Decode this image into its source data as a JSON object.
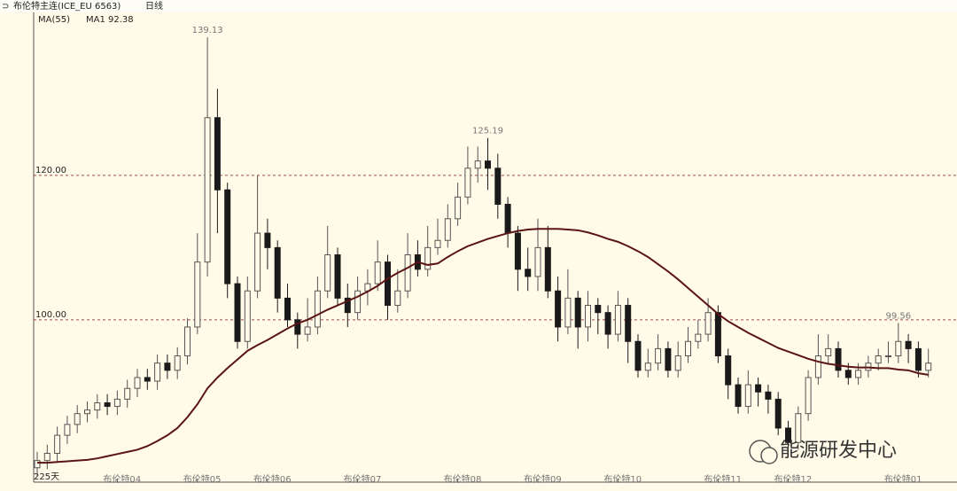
{
  "chart_data": {
    "type": "candlestick",
    "title": "布伦特主连(ICE_EU 6563)",
    "period": "日线",
    "indicator": "MA(55)",
    "ma_label": "MA1 92.38",
    "days_label": "225天",
    "watermark": "能源研发中心",
    "up_color": "#555555",
    "down_color": "#1a1a1a",
    "categories": [
      null,
      null,
      null,
      null,
      null,
      null,
      null,
      null,
      "布伦特04",
      null,
      null,
      null,
      null,
      null,
      null,
      null,
      "布伦特05",
      null,
      null,
      null,
      null,
      null,
      null,
      "布伦特06",
      null,
      null,
      null,
      null,
      null,
      null,
      null,
      null,
      "布伦特07",
      null,
      null,
      null,
      null,
      null,
      null,
      null,
      null,
      null,
      "布伦特08",
      null,
      null,
      null,
      null,
      null,
      null,
      null,
      "布伦特09",
      null,
      null,
      null,
      null,
      null,
      null,
      null,
      "布伦特10",
      null,
      null,
      null,
      null,
      null,
      null,
      null,
      null,
      null,
      "布伦特11",
      null,
      null,
      null,
      null,
      null,
      null,
      "布伦特12",
      null,
      null,
      null,
      null,
      null,
      null,
      null,
      null,
      null,
      null,
      "布伦特01",
      null,
      null,
      null
    ],
    "open": [
      79.5,
      80.5,
      81.5,
      84,
      85.5,
      87,
      87.5,
      88.5,
      88,
      89,
      90.5,
      92,
      91.5,
      94,
      93,
      95,
      99,
      108,
      128,
      118,
      105,
      97,
      104,
      112,
      110,
      103,
      100,
      98,
      99,
      104,
      109,
      103,
      101,
      104,
      105,
      108,
      102,
      104,
      109,
      107,
      110,
      111,
      114,
      117,
      121,
      122,
      121,
      116,
      112,
      107,
      106,
      110,
      104,
      99,
      103,
      99,
      102,
      101,
      98,
      102,
      97,
      93,
      94,
      96,
      93,
      95,
      97,
      98,
      101,
      95,
      91,
      88,
      91,
      90,
      89,
      85,
      83,
      87,
      92,
      95,
      96,
      93,
      92,
      93,
      94,
      95,
      95,
      97,
      96,
      93
    ],
    "high": [
      81.7,
      82.7,
      85.2,
      86.7,
      88.2,
      88.7,
      89.7,
      89.7,
      90.2,
      91.7,
      93.2,
      93.2,
      95.2,
      95.2,
      96.2,
      100.2,
      112,
      139.13,
      132,
      119,
      106,
      106,
      120,
      114,
      111,
      105,
      101,
      103,
      106,
      113,
      110,
      105,
      106,
      107,
      111,
      109,
      107,
      112,
      111,
      113,
      114,
      116,
      119,
      124,
      124,
      125.19,
      123,
      117,
      113,
      110,
      114,
      113,
      106,
      107,
      104,
      104,
      103,
      102,
      104,
      103,
      98,
      96,
      98,
      97,
      97,
      99,
      100,
      103,
      102,
      96,
      92,
      93,
      92,
      91,
      90,
      86,
      88,
      93,
      98,
      98,
      97,
      94,
      94,
      95,
      96,
      97,
      99.56,
      98,
      97,
      96
    ],
    "low": [
      78.3,
      79.3,
      80.3,
      82.8,
      84.3,
      85.8,
      86.3,
      86.8,
      86.8,
      87.8,
      89.3,
      90.3,
      90.3,
      91.8,
      91.8,
      93.8,
      98,
      106,
      112,
      103,
      96,
      96,
      103,
      107,
      101,
      99,
      96,
      97,
      98,
      103,
      102,
      99,
      100,
      102,
      104,
      100,
      101,
      103,
      106,
      106,
      109,
      110,
      113,
      116,
      119,
      118,
      114,
      110,
      104,
      104,
      104,
      103,
      97,
      98,
      96,
      97,
      98,
      96,
      97,
      94,
      92,
      92,
      93,
      92,
      92,
      94,
      96,
      97,
      94,
      89,
      87,
      87,
      88,
      87,
      84,
      82,
      82,
      86,
      91,
      94,
      92,
      91,
      91,
      92,
      93,
      94,
      94,
      94,
      92,
      92
    ],
    "close": [
      80.5,
      81.5,
      84,
      85.5,
      87,
      87.5,
      88.5,
      88,
      89,
      90.5,
      92,
      91.5,
      94,
      93,
      95,
      99,
      108,
      128,
      118,
      105,
      97,
      104,
      112,
      110,
      103,
      100,
      98,
      99,
      104,
      109,
      103,
      101,
      104,
      105,
      108,
      102,
      104,
      109,
      107,
      110,
      111,
      114,
      117,
      121,
      122,
      121,
      116,
      112,
      107,
      106,
      110,
      104,
      99,
      103,
      99,
      102,
      101,
      98,
      102,
      97,
      93,
      94,
      96,
      93,
      95,
      97,
      98,
      101,
      95,
      91,
      88,
      91,
      90,
      89,
      85,
      83,
      87,
      92,
      95,
      96,
      93,
      92,
      93,
      94,
      95,
      95,
      97,
      96,
      93,
      94
    ],
    "high_labels": [
      null,
      null,
      null,
      null,
      null,
      null,
      null,
      null,
      null,
      null,
      null,
      null,
      null,
      null,
      null,
      null,
      null,
      "139.13",
      null,
      null,
      null,
      null,
      null,
      null,
      null,
      null,
      null,
      null,
      null,
      null,
      null,
      null,
      null,
      null,
      null,
      null,
      null,
      null,
      null,
      null,
      null,
      null,
      null,
      null,
      null,
      "125.19",
      null,
      null,
      null,
      null,
      null,
      null,
      null,
      null,
      null,
      null,
      null,
      null,
      null,
      null,
      null,
      null,
      null,
      null,
      null,
      null,
      null,
      null,
      null,
      null,
      null,
      null,
      null,
      null,
      null,
      null,
      null,
      null,
      null,
      null,
      null,
      null,
      null,
      null,
      null,
      null,
      "99.56",
      null,
      null,
      null
    ],
    "series": [
      {
        "name": "MA1",
        "color": "#5a1414",
        "values": [
          80.2,
          80.2,
          80.3,
          80.4,
          80.5,
          80.6,
          80.8,
          81.1,
          81.4,
          81.7,
          82,
          82.5,
          83.2,
          84,
          85,
          86.5,
          88.3,
          90.5,
          92,
          93.3,
          94.5,
          95.7,
          96.5,
          97.2,
          98,
          98.8,
          99.5,
          100,
          100.7,
          101.4,
          102,
          102.6,
          103.2,
          103.9,
          104.7,
          105.7,
          106.5,
          107.2,
          108,
          107.6,
          107.8,
          108.7,
          109.5,
          110.2,
          110.7,
          111.2,
          111.6,
          112,
          112.3,
          112.5,
          112.6,
          112.6,
          112.6,
          112.5,
          112.4,
          112.1,
          111.7,
          111.2,
          110.8,
          110.2,
          109.5,
          108.7,
          107.7,
          106.7,
          105.6,
          104.4,
          103.2,
          102,
          100.8,
          99.8,
          99,
          98.2,
          97.5,
          96.8,
          96.1,
          95.6,
          95.1,
          94.6,
          94.2,
          93.9,
          93.7,
          93.5,
          93.4,
          93.4,
          93.3,
          93.3,
          93.1,
          93,
          92.6,
          92.38
        ]
      }
    ],
    "ylim": [
      78,
      141.6
    ],
    "yticks": [
      {
        "value": 100,
        "label": "100.00"
      },
      {
        "value": 120,
        "label": "120.00"
      }
    ],
    "grid": true,
    "grid_color": "#a04848"
  }
}
